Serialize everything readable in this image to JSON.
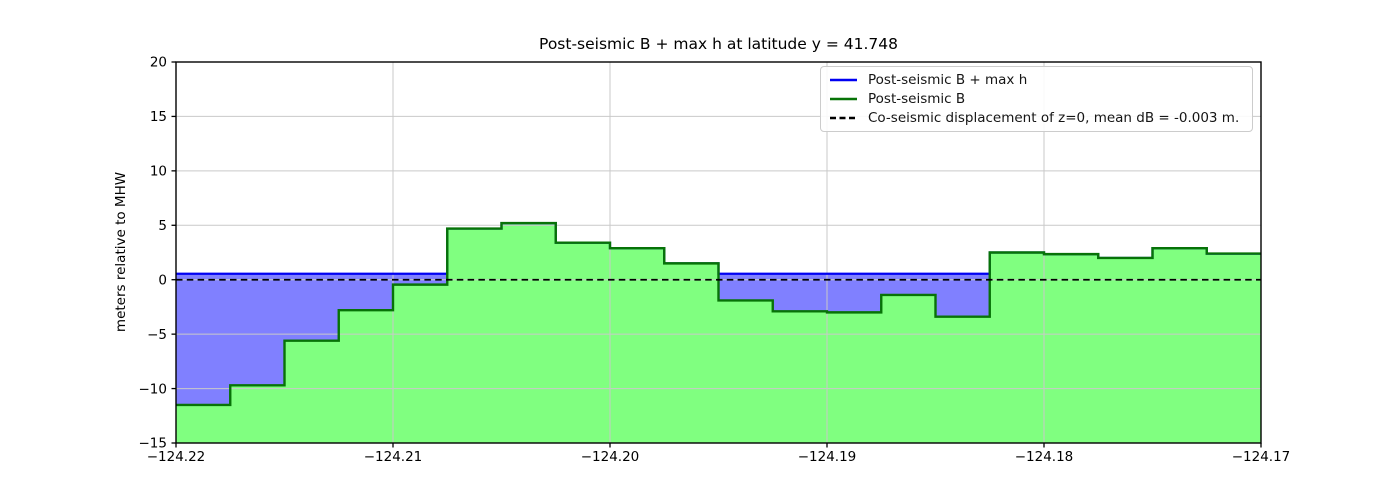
{
  "title": "Post-seismic B + max h at latitude y = 41.748",
  "axes": {
    "ylabel": "meters relative to MHW",
    "xlabel": "",
    "xlim": [
      -124.22,
      -124.17
    ],
    "ylim": [
      -15,
      20
    ],
    "xticks": [
      -124.22,
      -124.21,
      -124.2,
      -124.19,
      -124.18,
      -124.17
    ],
    "xtick_labels": [
      "−124.22",
      "−124.21",
      "−124.20",
      "−124.19",
      "−124.18",
      "−124.17"
    ],
    "yticks": [
      -15,
      -10,
      -5,
      0,
      5,
      10,
      15,
      20
    ],
    "ytick_labels": [
      "−15",
      "−10",
      "−5",
      "0",
      "5",
      "10",
      "15",
      "20"
    ],
    "grid": true
  },
  "legend": {
    "position": "upper right",
    "items": [
      {
        "label": "Post-seismic B + max h",
        "color": "#0000f2",
        "dash": false
      },
      {
        "label": "Post-seismic B",
        "color": "#077307",
        "dash": false
      },
      {
        "label": "Co-seismic displacement of z=0, mean dB = -0.003 m.",
        "color": "#000000",
        "dash": true
      }
    ]
  },
  "chart_data": {
    "type": "area",
    "title": "Post-seismic B + max h at latitude y = 41.748",
    "xlabel": "",
    "ylabel": "meters relative to MHW",
    "xlim": [
      -124.22,
      -124.17
    ],
    "ylim": [
      -15,
      20
    ],
    "legend_position": "upper right",
    "grid": true,
    "x_step_edges": [
      -124.22,
      -124.2175,
      -124.215,
      -124.2125,
      -124.21,
      -124.2075,
      -124.205,
      -124.2025,
      -124.2,
      -124.1975,
      -124.195,
      -124.1925,
      -124.19,
      -124.1875,
      -124.185,
      -124.1825,
      -124.18,
      -124.1775,
      -124.175,
      -124.1725,
      -124.17
    ],
    "series": [
      {
        "name": "Post-seismic B + max h",
        "type": "step_line",
        "note": "horizontal water level where B is below it, hugs B elsewhere",
        "value": 0.55,
        "color": "#0000f2",
        "fill_between_B_color": "#8080ff"
      },
      {
        "name": "Post-seismic B",
        "type": "step_area",
        "values": [
          -11.5,
          -9.7,
          -5.6,
          -2.8,
          -0.45,
          4.7,
          5.2,
          3.4,
          2.9,
          1.5,
          -1.9,
          -2.9,
          -3.0,
          -1.4,
          -3.4,
          2.5,
          2.35,
          2.0,
          2.9,
          2.4
        ],
        "line_color": "#077307",
        "fill_color": "#80ff80",
        "fill_to": -15
      },
      {
        "name": "Co-seismic displacement of z=0",
        "type": "hline",
        "value": -0.003,
        "color": "#000000",
        "dash": true
      }
    ]
  },
  "colors": {
    "background": "#ffffff",
    "grid": "#c9c9c9",
    "spine": "#000000",
    "blue_line": "#0000f2",
    "green_line": "#077307",
    "blue_fill": "#8080ff",
    "green_fill": "#80ff80"
  }
}
